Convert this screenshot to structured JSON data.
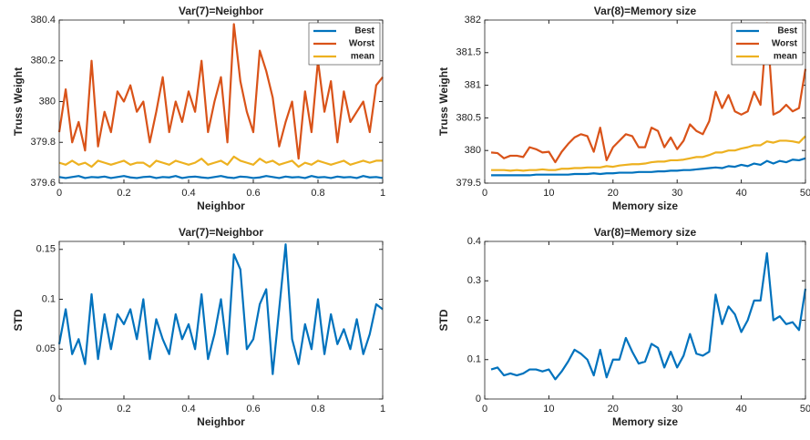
{
  "chart_data": [
    {
      "type": "line",
      "title": "Var(7)=Neighbor",
      "x_label": "Neighbor",
      "y_label": "Truss Weight",
      "x": [
        0,
        0.02,
        0.04,
        0.06,
        0.08,
        0.1,
        0.12,
        0.14,
        0.16,
        0.18,
        0.2,
        0.22,
        0.24,
        0.26,
        0.28,
        0.3,
        0.32,
        0.34,
        0.36,
        0.38,
        0.4,
        0.42,
        0.44,
        0.46,
        0.48,
        0.5,
        0.52,
        0.54,
        0.56,
        0.58,
        0.6,
        0.62,
        0.64,
        0.66,
        0.68,
        0.7,
        0.72,
        0.74,
        0.76,
        0.78,
        0.8,
        0.82,
        0.84,
        0.86,
        0.88,
        0.9,
        0.92,
        0.94,
        0.96,
        0.98,
        1
      ],
      "series": [
        {
          "name": "Best",
          "color": "#0072bd",
          "values": [
            379.63,
            379.625,
            379.63,
            379.635,
            379.625,
            379.63,
            379.628,
            379.632,
            379.625,
            379.63,
            379.635,
            379.628,
            379.625,
            379.63,
            379.632,
            379.625,
            379.63,
            379.628,
            379.635,
            379.625,
            379.63,
            379.632,
            379.628,
            379.625,
            379.63,
            379.635,
            379.628,
            379.625,
            379.632,
            379.63,
            379.625,
            379.628,
            379.635,
            379.63,
            379.625,
            379.632,
            379.628,
            379.63,
            379.625,
            379.635,
            379.628,
            379.63,
            379.625,
            379.632,
            379.628,
            379.63,
            379.625,
            379.635,
            379.628,
            379.63,
            379.625
          ]
        },
        {
          "name": "Worst",
          "color": "#d95319",
          "values": [
            379.85,
            380.06,
            379.8,
            379.9,
            379.76,
            380.2,
            379.78,
            379.95,
            379.85,
            380.05,
            380.0,
            380.08,
            379.95,
            380.0,
            379.8,
            379.95,
            380.12,
            379.85,
            380.0,
            379.9,
            380.05,
            379.95,
            380.2,
            379.85,
            380.0,
            380.12,
            379.8,
            380.38,
            380.1,
            379.95,
            379.85,
            380.25,
            380.15,
            380.02,
            379.78,
            379.9,
            380.0,
            379.72,
            380.05,
            379.85,
            380.2,
            379.95,
            380.1,
            379.8,
            380.05,
            379.9,
            379.95,
            380.0,
            379.85,
            380.08,
            380.12
          ]
        },
        {
          "name": "mean",
          "color": "#edb120",
          "values": [
            379.7,
            379.69,
            379.71,
            379.69,
            379.7,
            379.68,
            379.71,
            379.7,
            379.69,
            379.7,
            379.71,
            379.69,
            379.7,
            379.7,
            379.68,
            379.71,
            379.7,
            379.69,
            379.71,
            379.7,
            379.69,
            379.7,
            379.72,
            379.69,
            379.7,
            379.71,
            379.69,
            379.73,
            379.71,
            379.7,
            379.69,
            379.72,
            379.7,
            379.71,
            379.69,
            379.7,
            379.71,
            379.68,
            379.7,
            379.69,
            379.71,
            379.7,
            379.69,
            379.7,
            379.71,
            379.69,
            379.7,
            379.71,
            379.7,
            379.71,
            379.71
          ]
        }
      ],
      "xlim": [
        0,
        1
      ],
      "xticks": [
        0,
        0.2,
        0.4,
        0.6,
        0.8,
        1
      ],
      "ylim": [
        379.6,
        380.4
      ],
      "yticks": [
        379.6,
        379.8,
        380,
        380.2,
        380.4
      ],
      "legend": "upper right"
    },
    {
      "type": "line",
      "title": "Var(8)=Memory size",
      "x_label": "Memory size",
      "y_label": "Truss Weight",
      "x": [
        1,
        2,
        3,
        4,
        5,
        6,
        7,
        8,
        9,
        10,
        11,
        12,
        13,
        14,
        15,
        16,
        17,
        18,
        19,
        20,
        21,
        22,
        23,
        24,
        25,
        26,
        27,
        28,
        29,
        30,
        31,
        32,
        33,
        34,
        35,
        36,
        37,
        38,
        39,
        40,
        41,
        42,
        43,
        44,
        45,
        46,
        47,
        48,
        49,
        50
      ],
      "series": [
        {
          "name": "Best",
          "color": "#0072bd",
          "values": [
            379.62,
            379.62,
            379.62,
            379.62,
            379.62,
            379.62,
            379.62,
            379.63,
            379.63,
            379.63,
            379.63,
            379.63,
            379.63,
            379.64,
            379.64,
            379.64,
            379.65,
            379.64,
            379.65,
            379.65,
            379.66,
            379.66,
            379.66,
            379.67,
            379.67,
            379.67,
            379.68,
            379.68,
            379.69,
            379.69,
            379.7,
            379.7,
            379.71,
            379.72,
            379.73,
            379.74,
            379.73,
            379.76,
            379.75,
            379.78,
            379.76,
            379.8,
            379.78,
            379.84,
            379.8,
            379.84,
            379.82,
            379.86,
            379.85,
            379.88
          ]
        },
        {
          "name": "Worst",
          "color": "#d95319",
          "values": [
            379.97,
            379.96,
            379.88,
            379.92,
            379.92,
            379.9,
            380.05,
            380.02,
            379.97,
            379.98,
            379.82,
            379.98,
            380.1,
            380.2,
            380.25,
            380.22,
            379.98,
            380.35,
            379.85,
            380.05,
            380.15,
            380.25,
            380.22,
            380.05,
            380.05,
            380.35,
            380.3,
            380.05,
            380.2,
            380.02,
            380.15,
            380.4,
            380.3,
            380.25,
            380.45,
            380.9,
            380.65,
            380.85,
            380.6,
            380.55,
            380.6,
            380.9,
            380.7,
            381.95,
            380.55,
            380.6,
            380.7,
            380.6,
            380.65,
            381.25
          ]
        },
        {
          "name": "mean",
          "color": "#edb120",
          "values": [
            379.7,
            379.7,
            379.7,
            379.69,
            379.7,
            379.69,
            379.7,
            379.7,
            379.71,
            379.7,
            379.7,
            379.72,
            379.72,
            379.73,
            379.73,
            379.74,
            379.74,
            379.74,
            379.76,
            379.75,
            379.77,
            379.78,
            379.79,
            379.79,
            379.8,
            379.82,
            379.83,
            379.83,
            379.85,
            379.85,
            379.86,
            379.88,
            379.9,
            379.9,
            379.93,
            379.97,
            379.97,
            380.0,
            380.0,
            380.03,
            380.05,
            380.08,
            380.08,
            380.14,
            380.12,
            380.15,
            380.15,
            380.14,
            380.12,
            380.22
          ]
        }
      ],
      "xlim": [
        0,
        50
      ],
      "xticks": [
        0,
        10,
        20,
        30,
        40,
        50
      ],
      "ylim": [
        379.5,
        382
      ],
      "yticks": [
        379.5,
        380,
        380.5,
        381,
        381.5,
        382
      ],
      "legend": "upper right"
    },
    {
      "type": "line",
      "title": "Var(7)=Neighbor",
      "x_label": "Neighbor",
      "y_label": "STD",
      "x": [
        0,
        0.02,
        0.04,
        0.06,
        0.08,
        0.1,
        0.12,
        0.14,
        0.16,
        0.18,
        0.2,
        0.22,
        0.24,
        0.26,
        0.28,
        0.3,
        0.32,
        0.34,
        0.36,
        0.38,
        0.4,
        0.42,
        0.44,
        0.46,
        0.48,
        0.5,
        0.52,
        0.54,
        0.56,
        0.58,
        0.6,
        0.62,
        0.64,
        0.66,
        0.68,
        0.7,
        0.72,
        0.74,
        0.76,
        0.78,
        0.8,
        0.82,
        0.84,
        0.86,
        0.88,
        0.9,
        0.92,
        0.94,
        0.96,
        0.98,
        1
      ],
      "series": [
        {
          "color": "#0072bd",
          "values": [
            0.055,
            0.09,
            0.045,
            0.06,
            0.035,
            0.105,
            0.04,
            0.085,
            0.05,
            0.085,
            0.075,
            0.09,
            0.06,
            0.1,
            0.04,
            0.08,
            0.06,
            0.045,
            0.085,
            0.06,
            0.075,
            0.05,
            0.105,
            0.04,
            0.065,
            0.1,
            0.045,
            0.145,
            0.13,
            0.05,
            0.06,
            0.095,
            0.11,
            0.025,
            0.09,
            0.155,
            0.06,
            0.035,
            0.075,
            0.05,
            0.1,
            0.045,
            0.085,
            0.055,
            0.07,
            0.05,
            0.08,
            0.045,
            0.065,
            0.095,
            0.09
          ]
        }
      ],
      "xlim": [
        0,
        1
      ],
      "xticks": [
        0,
        0.2,
        0.4,
        0.6,
        0.8,
        1
      ],
      "ylim": [
        0,
        0.158
      ],
      "yticks": [
        0,
        0.05,
        0.1,
        0.15
      ]
    },
    {
      "type": "line",
      "title": "Var(8)=Memory size",
      "x_label": "Memory size",
      "y_label": "STD",
      "x": [
        1,
        2,
        3,
        4,
        5,
        6,
        7,
        8,
        9,
        10,
        11,
        12,
        13,
        14,
        15,
        16,
        17,
        18,
        19,
        20,
        21,
        22,
        23,
        24,
        25,
        26,
        27,
        28,
        29,
        30,
        31,
        32,
        33,
        34,
        35,
        36,
        37,
        38,
        39,
        40,
        41,
        42,
        43,
        44,
        45,
        46,
        47,
        48,
        49,
        50
      ],
      "series": [
        {
          "color": "#0072bd",
          "values": [
            0.075,
            0.08,
            0.06,
            0.065,
            0.06,
            0.065,
            0.075,
            0.075,
            0.07,
            0.075,
            0.05,
            0.07,
            0.095,
            0.125,
            0.115,
            0.1,
            0.06,
            0.125,
            0.055,
            0.1,
            0.1,
            0.155,
            0.12,
            0.09,
            0.095,
            0.14,
            0.13,
            0.08,
            0.12,
            0.08,
            0.11,
            0.165,
            0.115,
            0.11,
            0.12,
            0.265,
            0.19,
            0.235,
            0.215,
            0.17,
            0.2,
            0.25,
            0.25,
            0.37,
            0.2,
            0.21,
            0.19,
            0.195,
            0.175,
            0.28
          ]
        }
      ],
      "xlim": [
        0,
        50
      ],
      "xticks": [
        0,
        10,
        20,
        30,
        40,
        50
      ],
      "ylim": [
        0,
        0.4
      ],
      "yticks": [
        0,
        0.1,
        0.2,
        0.3,
        0.4
      ]
    }
  ]
}
